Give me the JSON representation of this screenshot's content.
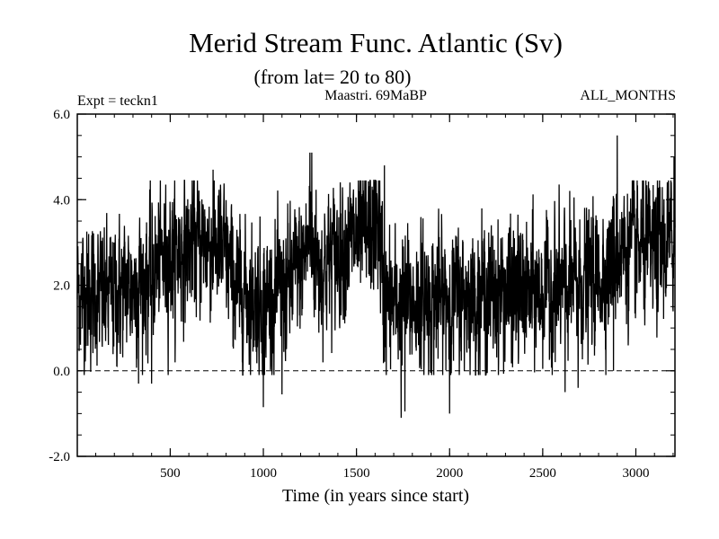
{
  "chart_data": {
    "type": "line",
    "title": "Merid Stream Func. Atlantic (Sv)",
    "subtitle": "(from lat= 20 to 80)",
    "annotations": {
      "experiment": "Expt = teckn1",
      "period": "Maastri.  69MaBP",
      "months": "ALL_MONTHS"
    },
    "xlabel": "Time (in years since start)",
    "ylabel": "",
    "xlim": [
      1,
      3210
    ],
    "ylim": [
      -2.0,
      6.0
    ],
    "x_ticks": [
      {
        "value": 500,
        "label": "500"
      },
      {
        "value": 1000,
        "label": "1000"
      },
      {
        "value": 1500,
        "label": "1500"
      },
      {
        "value": 2000,
        "label": "2000"
      },
      {
        "value": 2500,
        "label": "2500"
      },
      {
        "value": 3000,
        "label": "3000"
      }
    ],
    "y_ticks": [
      {
        "value": 6.0,
        "label": "6.0"
      },
      {
        "value": 4.0,
        "label": "4.0"
      },
      {
        "value": 2.0,
        "label": "2.0"
      },
      {
        "value": 0.0,
        "label": "0.0"
      },
      {
        "value": -2.0,
        "label": "-2.0"
      }
    ],
    "x_minor_step": 100,
    "y_minor_step": 0.5,
    "reference_line": {
      "y": 0.0,
      "style": "dashed"
    },
    "series": [
      {
        "name": "Merid Stream Func. Atlantic",
        "num_points": 3210,
        "baseline": [
          [
            1,
            1.9
          ],
          [
            150,
            1.7
          ],
          [
            300,
            2.0
          ],
          [
            400,
            2.2
          ],
          [
            450,
            2.6
          ],
          [
            600,
            2.9
          ],
          [
            700,
            3.0
          ],
          [
            800,
            2.7
          ],
          [
            850,
            1.9
          ],
          [
            1000,
            1.6
          ],
          [
            1100,
            1.8
          ],
          [
            1200,
            2.4
          ],
          [
            1250,
            3.2
          ],
          [
            1300,
            2.4
          ],
          [
            1350,
            2.6
          ],
          [
            1450,
            3.0
          ],
          [
            1550,
            3.1
          ],
          [
            1620,
            3.5
          ],
          [
            1650,
            1.5
          ],
          [
            1800,
            1.6
          ],
          [
            2000,
            1.7
          ],
          [
            2200,
            1.8
          ],
          [
            2400,
            1.8
          ],
          [
            2600,
            1.9
          ],
          [
            2800,
            2.2
          ],
          [
            2900,
            2.8
          ],
          [
            3100,
            2.8
          ],
          [
            3210,
            3.0
          ]
        ],
        "spread": 0.75,
        "extremes": [
          [
            1250,
            5.1
          ],
          [
            1260,
            5.1
          ],
          [
            1650,
            4.8
          ],
          [
            2900,
            5.5
          ],
          [
            3205,
            5.0
          ],
          [
            730,
            4.7
          ],
          [
            1000,
            -0.85
          ],
          [
            1100,
            -0.55
          ],
          [
            1740,
            -1.1
          ],
          [
            1760,
            -0.95
          ],
          [
            2000,
            -1.0
          ],
          [
            330,
            -0.3
          ],
          [
            400,
            -0.3
          ],
          [
            2620,
            -0.5
          ],
          [
            2690,
            -0.4
          ],
          [
            2880,
            0.0
          ]
        ]
      }
    ]
  }
}
